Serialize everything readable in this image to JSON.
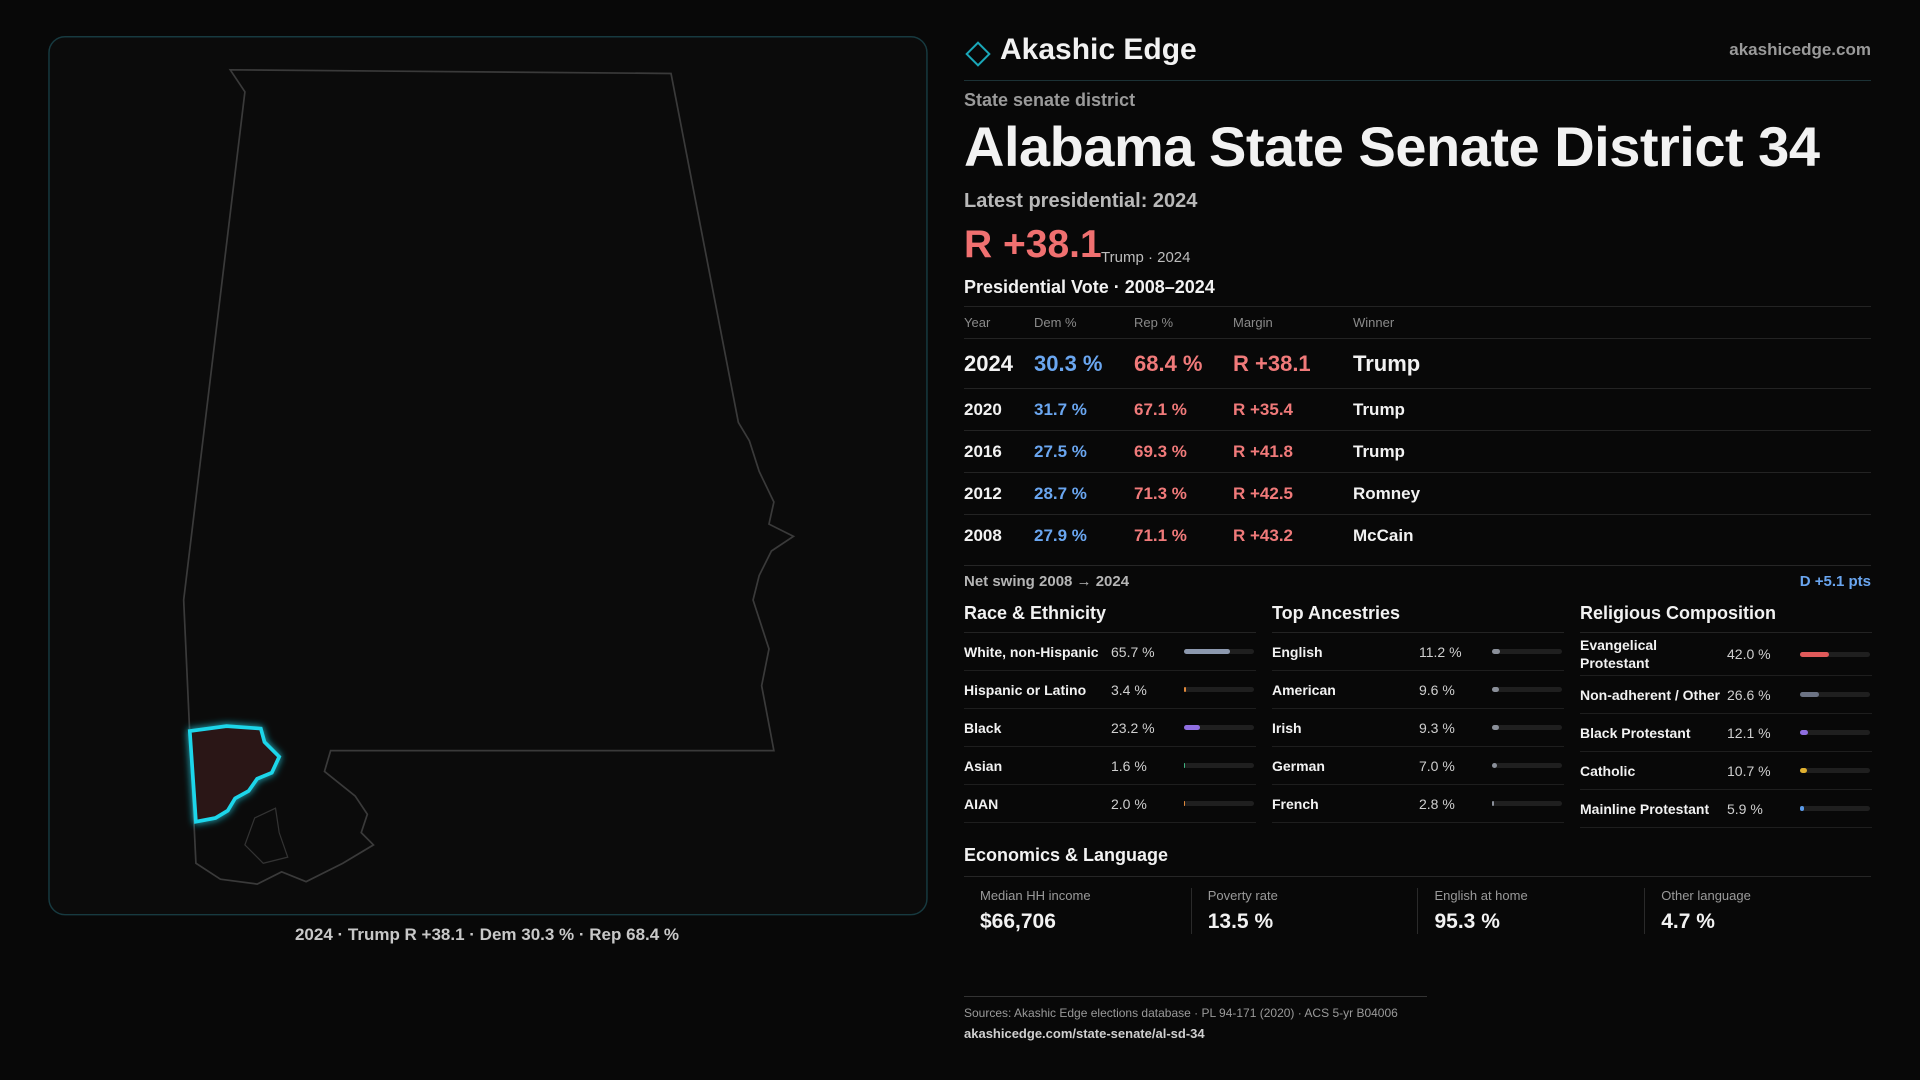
{
  "brand": {
    "name": "Akashic Edge",
    "site": "akashicedge.com"
  },
  "header": {
    "kicker": "State senate district",
    "title": "Alabama State Senate District 34",
    "latest": "Latest presidential: 2024",
    "margin": "R +38.1",
    "margin_note": "Trump · 2024"
  },
  "map": {
    "caption": "2024 · Trump R +38.1 · Dem 30.3 % · Rep 68.4 %"
  },
  "table": {
    "title": "Presidential Vote · 2008–2024",
    "columns": [
      "Year",
      "Dem %",
      "Rep %",
      "Margin",
      "Winner"
    ],
    "rows": [
      [
        "2024",
        "30.3 %",
        "68.4 %",
        "R +38.1",
        "Trump"
      ],
      [
        "2020",
        "31.7 %",
        "67.1 %",
        "R +35.4",
        "Trump"
      ],
      [
        "2016",
        "27.5 %",
        "69.3 %",
        "R +41.8",
        "Trump"
      ],
      [
        "2012",
        "28.7 %",
        "71.3 %",
        "R +42.5",
        "Romney"
      ],
      [
        "2008",
        "27.9 %",
        "71.1 %",
        "R +43.2",
        "McCain"
      ]
    ]
  },
  "swing": {
    "label": "Net swing 2008 → 2024",
    "value": "D +5.1 pts"
  },
  "race": {
    "title": "Race & Ethnicity",
    "rows": [
      {
        "label": "White, non-Hispanic",
        "value": 65.7,
        "value_label": "65.7 %",
        "color": "#8c98ae"
      },
      {
        "label": "Hispanic or Latino",
        "value": 3.4,
        "value_label": "3.4 %",
        "color": "#e0883a"
      },
      {
        "label": "Black",
        "value": 23.2,
        "value_label": "23.2 %",
        "color": "#8f6ee0"
      },
      {
        "label": "Asian",
        "value": 1.6,
        "value_label": "1.6 %",
        "color": "#3fb27f"
      },
      {
        "label": "AIAN",
        "value": 2.0,
        "value_label": "2.0 %",
        "color": "#e0883a"
      }
    ]
  },
  "ancestry": {
    "title": "Top Ancestries",
    "rows": [
      {
        "label": "English",
        "value": 11.2,
        "value_label": "11.2 %",
        "color": "#8a8f99"
      },
      {
        "label": "American",
        "value": 9.6,
        "value_label": "9.6 %",
        "color": "#8a8f99"
      },
      {
        "label": "Irish",
        "value": 9.3,
        "value_label": "9.3 %",
        "color": "#8a8f99"
      },
      {
        "label": "German",
        "value": 7.0,
        "value_label": "7.0 %",
        "color": "#8a8f99"
      },
      {
        "label": "French",
        "value": 2.8,
        "value_label": "2.8 %",
        "color": "#8a8f99"
      }
    ]
  },
  "religion": {
    "title": "Religious Composition",
    "rows": [
      {
        "label": "Evangelical Protestant",
        "value": 42.0,
        "value_label": "42.0 %",
        "color": "#e05a5a"
      },
      {
        "label": "Non-adherent / Other",
        "value": 26.6,
        "value_label": "26.6 %",
        "color": "#6c7384"
      },
      {
        "label": "Black Protestant",
        "value": 12.1,
        "value_label": "12.1 %",
        "color": "#8f6ee0"
      },
      {
        "label": "Catholic",
        "value": 10.7,
        "value_label": "10.7 %",
        "color": "#e0b030"
      },
      {
        "label": "Mainline Protestant",
        "value": 5.9,
        "value_label": "5.9 %",
        "color": "#5a9ae8"
      }
    ]
  },
  "economics": {
    "title": "Economics & Language",
    "items": [
      {
        "label": "Median HH income",
        "value": "$66,706"
      },
      {
        "label": "Poverty rate",
        "value": "13.5 %"
      },
      {
        "label": "English at home",
        "value": "95.3 %"
      },
      {
        "label": "Other language",
        "value": "4.7 %"
      }
    ]
  },
  "footer": {
    "sources": "Sources: Akashic Edge elections database · PL 94-171 (2020) · ACS 5-yr B04006",
    "url": "akashicedge.com/state-senate/al-sd-34"
  }
}
